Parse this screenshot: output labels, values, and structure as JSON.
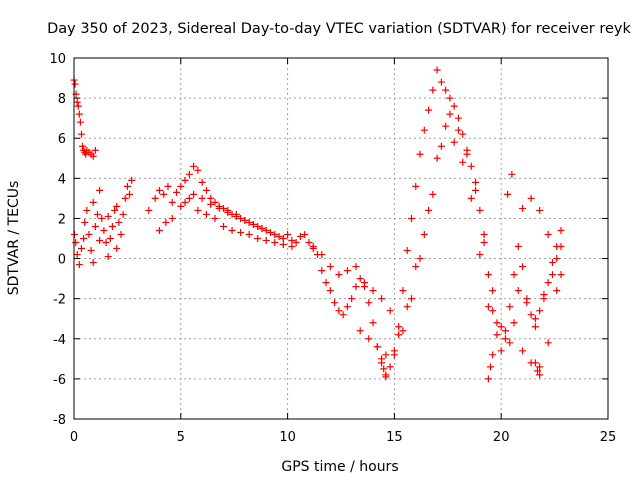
{
  "chart_data": {
    "type": "scatter",
    "title": "Day 350 of 2023, Sidereal Day-to-day VTEC variation (SDTVAR) for receiver reyk",
    "xlabel": "GPS time / hours",
    "ylabel": "SDTVAR / TECUs",
    "xlim": [
      0,
      25
    ],
    "ylim": [
      -8,
      10
    ],
    "xticks": [
      0,
      5,
      10,
      15,
      20,
      25
    ],
    "yticks": [
      -8,
      -6,
      -4,
      -2,
      0,
      2,
      4,
      6,
      8,
      10
    ],
    "grid": true,
    "marker": "+",
    "color": "#ff0000",
    "series": [
      {
        "name": "SDTVAR",
        "x": [
          0.0,
          0.05,
          0.1,
          0.15,
          0.2,
          0.25,
          0.3,
          0.35,
          0.4,
          0.45,
          0.5,
          0.55,
          0.6,
          0.7,
          0.8,
          0.9,
          1.0,
          0.02,
          0.08,
          0.15,
          0.25,
          0.35,
          0.45,
          0.5,
          0.6,
          0.7,
          0.8,
          0.9,
          1.0,
          1.1,
          1.2,
          1.3,
          1.4,
          1.5,
          1.6,
          1.7,
          1.8,
          1.9,
          2.0,
          2.1,
          2.2,
          2.3,
          2.4,
          2.5,
          2.6,
          2.7,
          0.9,
          1.2,
          1.6,
          2.0,
          3.5,
          3.8,
          4.0,
          4.2,
          4.4,
          4.6,
          4.8,
          5.0,
          5.2,
          5.4,
          5.6,
          5.8,
          6.0,
          6.2,
          6.4,
          6.6,
          6.8,
          7.0,
          7.2,
          7.4,
          7.6,
          7.8,
          8.0,
          8.2,
          8.4,
          8.6,
          8.8,
          9.0,
          9.2,
          9.4,
          9.6,
          9.8,
          10.0,
          10.2,
          10.4,
          10.6,
          4.0,
          4.3,
          4.6,
          5.0,
          5.4,
          5.8,
          6.2,
          6.6,
          7.0,
          7.4,
          7.8,
          8.2,
          8.6,
          9.0,
          9.4,
          9.8,
          10.2,
          5.2,
          5.6,
          6.0,
          6.4,
          6.8,
          7.2,
          7.6,
          8.0,
          8.4,
          8.8,
          10.8,
          11.0,
          11.2,
          11.4,
          11.6,
          11.8,
          12.0,
          12.2,
          12.4,
          12.6,
          12.8,
          13.0,
          13.2,
          13.4,
          13.6,
          13.8,
          14.0,
          14.2,
          14.4,
          14.6,
          14.8,
          15.0,
          15.2,
          15.4,
          15.6,
          15.8,
          16.0,
          16.2,
          16.4,
          16.6,
          16.8,
          17.0,
          17.2,
          17.4,
          17.6,
          17.8,
          18.0,
          18.2,
          18.4,
          18.6,
          18.8,
          19.0,
          19.2,
          19.4,
          19.6,
          19.8,
          20.0,
          20.2,
          20.4,
          20.6,
          20.8,
          21.0,
          21.2,
          21.4,
          21.6,
          21.8,
          22.0,
          22.2,
          22.4,
          22.6,
          22.8,
          11.2,
          11.6,
          12.0,
          12.4,
          12.8,
          13.2,
          13.6,
          14.0,
          14.4,
          14.8,
          15.2,
          15.6,
          16.0,
          16.4,
          16.8,
          17.2,
          17.6,
          18.0,
          18.4,
          18.8,
          19.2,
          19.6,
          20.0,
          20.4,
          20.8,
          21.2,
          21.6,
          22.0,
          22.4,
          22.8,
          13.4,
          13.8,
          14.2,
          14.6,
          15.0,
          15.4,
          15.8,
          16.2,
          16.6,
          17.0,
          17.4,
          17.8,
          18.2,
          18.6,
          19.0,
          19.4,
          19.8,
          20.2,
          20.6,
          21.0,
          21.4,
          21.8,
          22.2,
          22.6,
          14.4,
          14.5,
          14.6,
          19.4,
          19.5,
          19.6,
          21.6,
          21.7,
          21.8,
          20.3,
          20.5,
          21.0,
          21.4,
          21.8,
          22.2,
          22.6,
          22.8
        ],
        "y": [
          8.9,
          8.7,
          8.2,
          7.8,
          7.6,
          7.2,
          6.8,
          6.2,
          5.6,
          5.4,
          5.3,
          5.2,
          5.4,
          5.3,
          5.2,
          5.1,
          5.4,
          1.2,
          0.8,
          0.2,
          -0.3,
          0.5,
          1.0,
          1.8,
          2.4,
          1.2,
          0.4,
          2.8,
          1.6,
          2.2,
          0.9,
          2.0,
          1.4,
          0.8,
          2.1,
          1.0,
          1.6,
          2.4,
          0.5,
          1.8,
          1.2,
          2.2,
          3.0,
          3.6,
          3.2,
          3.9,
          -0.2,
          3.4,
          0.1,
          2.6,
          2.4,
          3.0,
          3.4,
          3.2,
          3.6,
          2.8,
          3.3,
          3.6,
          3.9,
          4.2,
          4.6,
          4.4,
          3.8,
          3.4,
          3.0,
          2.8,
          2.6,
          2.5,
          2.4,
          2.2,
          2.2,
          2.0,
          1.9,
          1.8,
          1.7,
          1.6,
          1.5,
          1.4,
          1.3,
          1.2,
          1.1,
          1.0,
          1.2,
          0.9,
          0.8,
          1.1,
          1.4,
          1.8,
          2.0,
          2.6,
          3.0,
          2.4,
          2.2,
          2.0,
          1.6,
          1.4,
          1.3,
          1.2,
          1.0,
          0.9,
          0.8,
          0.7,
          0.6,
          2.8,
          3.2,
          3.0,
          2.7,
          2.5,
          2.3,
          2.1,
          1.9,
          1.7,
          1.5,
          1.2,
          0.8,
          0.5,
          0.2,
          -0.6,
          -1.2,
          -1.6,
          -2.2,
          -2.6,
          -2.8,
          -2.4,
          -2.0,
          -1.4,
          -1.0,
          -1.4,
          -2.2,
          -3.2,
          -4.4,
          -5.2,
          -5.8,
          -5.4,
          -4.8,
          -3.8,
          -1.6,
          0.4,
          2.0,
          3.6,
          5.2,
          6.4,
          7.4,
          8.4,
          9.4,
          8.8,
          8.4,
          8.0,
          7.6,
          7.0,
          6.2,
          5.4,
          4.6,
          3.4,
          2.4,
          0.8,
          -0.8,
          -2.6,
          -3.8,
          -4.6,
          -3.6,
          -2.4,
          -0.8,
          0.6,
          -0.4,
          -2.0,
          -2.8,
          -3.4,
          -2.6,
          -2.0,
          -1.2,
          -0.2,
          0.6,
          1.4,
          0.6,
          0.2,
          -0.4,
          -0.8,
          -0.6,
          -0.4,
          -1.2,
          -1.6,
          -2.0,
          -2.6,
          -3.4,
          -2.4,
          -0.4,
          1.2,
          3.2,
          5.6,
          7.2,
          6.4,
          5.2,
          3.8,
          1.2,
          -1.6,
          -3.4,
          -4.2,
          -1.6,
          -2.2,
          -3.0,
          -1.8,
          -0.8,
          0.6,
          -3.6,
          -4.0,
          -4.4,
          -4.8,
          -4.6,
          -3.6,
          -2.0,
          0.0,
          2.4,
          5.0,
          6.6,
          5.8,
          4.8,
          3.0,
          0.2,
          -2.4,
          -3.2,
          -4.0,
          -3.2,
          -4.6,
          -5.2,
          -5.4,
          -4.2,
          -1.6,
          -5.0,
          -5.5,
          -5.9,
          -6.0,
          -5.4,
          -4.8,
          -5.2,
          -5.6,
          -5.8,
          3.2,
          4.2,
          2.5,
          3.0,
          2.4,
          1.2,
          0.0,
          -0.8
        ]
      }
    ]
  }
}
